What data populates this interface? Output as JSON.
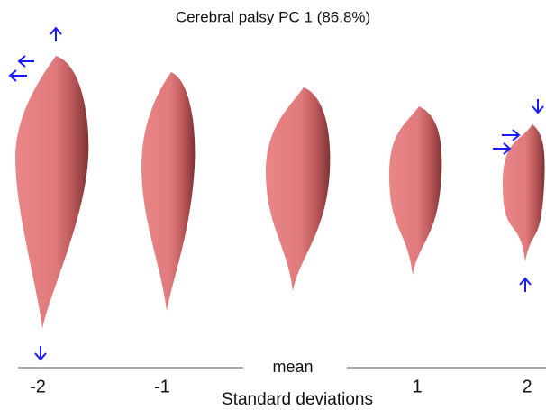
{
  "title": "Cerebral palsy PC 1 (86.8%)",
  "x_axis": {
    "label": "Standard deviations",
    "ticks": [
      "-2",
      "-1",
      "mean",
      "1",
      "2"
    ]
  }
}
